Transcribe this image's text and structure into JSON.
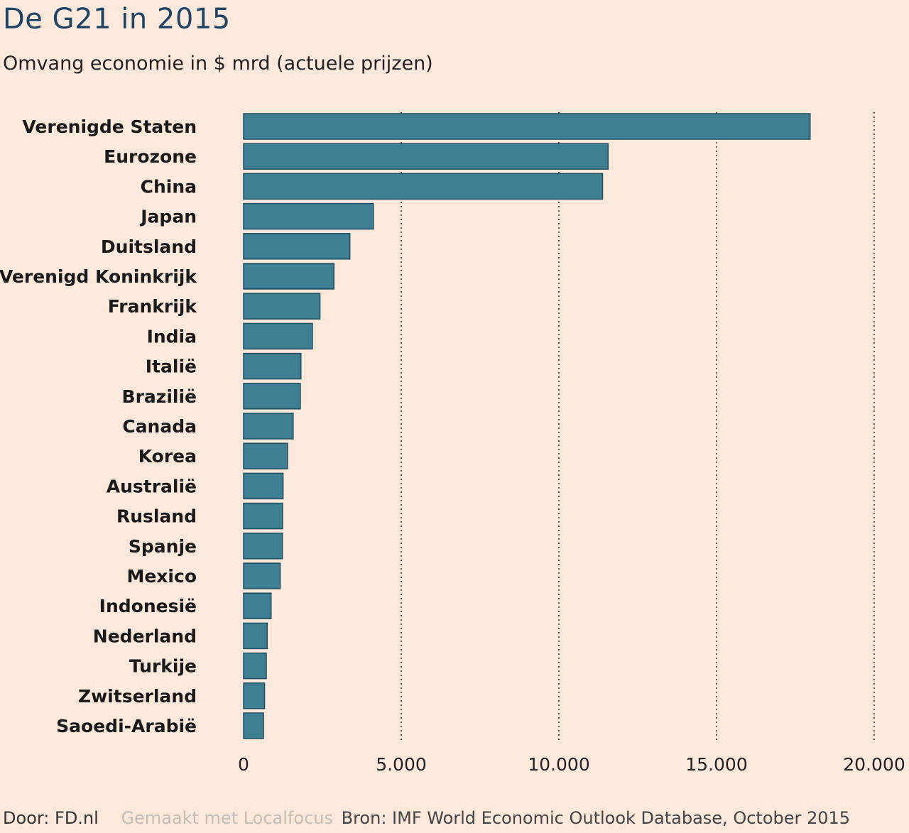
{
  "header": {
    "title": "De G21 in 2015",
    "subtitle": "Omvang economie in $ mrd (actuele prijzen)"
  },
  "footer": {
    "author": "Door: FD.nl",
    "made_with": "Gemaakt met Localfocus",
    "source": "Bron:  IMF World Economic Outlook Database, October 2015"
  },
  "colors": {
    "bar": "#3f7f93",
    "bar_border": "#1f4f60",
    "grid": "#3a3a3a",
    "title": "#1e4466",
    "background": "#fde8dc"
  },
  "chart_data": {
    "type": "bar",
    "orientation": "horizontal",
    "categories": [
      "Verenigde Staten",
      "Eurozone",
      "China",
      "Japan",
      "Duitsland",
      "Verenigd Koninkrijk",
      "Frankrijk",
      "India",
      "Italië",
      "Brazilië",
      "Canada",
      "Korea",
      "Australië",
      "Rusland",
      "Spanje",
      "Mexico",
      "Indonesië",
      "Nederland",
      "Turkije",
      "Zwitserland",
      "Saoedi-Arabië"
    ],
    "values": [
      17968,
      11560,
      11385,
      4116,
      3371,
      2865,
      2423,
      2183,
      1819,
      1800,
      1573,
      1393,
      1252,
      1236,
      1230,
      1161,
      873,
      750,
      722,
      665,
      632
    ],
    "xlim": [
      0,
      20000
    ],
    "ticks": [
      0,
      5000,
      10000,
      15000,
      20000
    ],
    "tick_labels": [
      "0",
      "5.000",
      "10.000",
      "15.000",
      "20.000"
    ],
    "grid": "vertical dotted",
    "legend": "none"
  }
}
